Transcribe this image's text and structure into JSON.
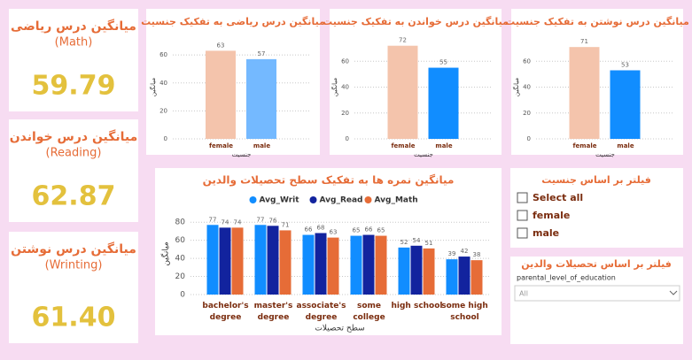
{
  "kpis": [
    {
      "title": "میانگین درس ریاضی",
      "subtitle": "(Math)",
      "value": "59.79"
    },
    {
      "title": "میانگین درس خواندن",
      "subtitle": "(Reading)",
      "value": "62.87"
    },
    {
      "title": "میانگین درس نوشتن",
      "subtitle": "(Wrinting)",
      "value": "61.40"
    }
  ],
  "chart_data": [
    {
      "type": "bar",
      "title": "میانگین درس ریاضی به تفکیک جنسیت",
      "x_label": "جنسیت",
      "y_label": "میانگین",
      "categories": [
        "female",
        "male"
      ],
      "values": [
        63,
        57
      ],
      "colors": [
        "#f4c4ac",
        "#74b9ff"
      ],
      "ylim": [
        0,
        74
      ],
      "yticks": [
        0,
        20,
        40,
        60
      ],
      "grid": true
    },
    {
      "type": "bar",
      "title": "میانگین درس خواندن به تفکیک جنسیت",
      "x_label": "جنسیت",
      "y_label": "میانگین",
      "categories": [
        "female",
        "male"
      ],
      "values": [
        72,
        55
      ],
      "colors": [
        "#f4c4ac",
        "#118dff"
      ],
      "ylim": [
        0,
        80
      ],
      "yticks": [
        0,
        20,
        40,
        60
      ],
      "grid": true
    },
    {
      "type": "bar",
      "title": "میانگین درس نوشتن به تفکیک جنسیت",
      "x_label": "جنسیت",
      "y_label": "میانگین",
      "categories": [
        "female",
        "male"
      ],
      "values": [
        71,
        53
      ],
      "colors": [
        "#f4c4ac",
        "#118dff"
      ],
      "ylim": [
        0,
        80
      ],
      "yticks": [
        0,
        20,
        40,
        60
      ],
      "grid": true
    },
    {
      "type": "bar",
      "title": "میانگین نمره ها به تفکیک سطح تحصیلات والدین",
      "x_label": "سطح تحصیلات",
      "y_label": "میانگین",
      "categories": [
        "bachelor's degree",
        "master's degree",
        "associate's degree",
        "some college",
        "high school",
        "some high school"
      ],
      "series": [
        {
          "name": "Avg_Writ",
          "color": "#118dff",
          "values": [
            77,
            77,
            66,
            65,
            52,
            39
          ]
        },
        {
          "name": "Avg_Read",
          "color": "#12239e",
          "values": [
            74,
            76,
            68,
            66,
            54,
            42
          ]
        },
        {
          "name": "Avg_Math",
          "color": "#e66c37",
          "values": [
            74,
            71,
            63,
            65,
            51,
            38
          ]
        }
      ],
      "ylim": [
        0,
        90
      ],
      "yticks": [
        0,
        20,
        40,
        60,
        80
      ],
      "grid": true
    }
  ],
  "filters": {
    "gender": {
      "title": "فیلتر بر اساس جنسیت",
      "options": [
        "Select all",
        "female",
        "male"
      ]
    },
    "education": {
      "title": "فیلتر بر اساس تحصیلات والدین",
      "field": "parental_level_of_education",
      "selected": "All"
    }
  }
}
